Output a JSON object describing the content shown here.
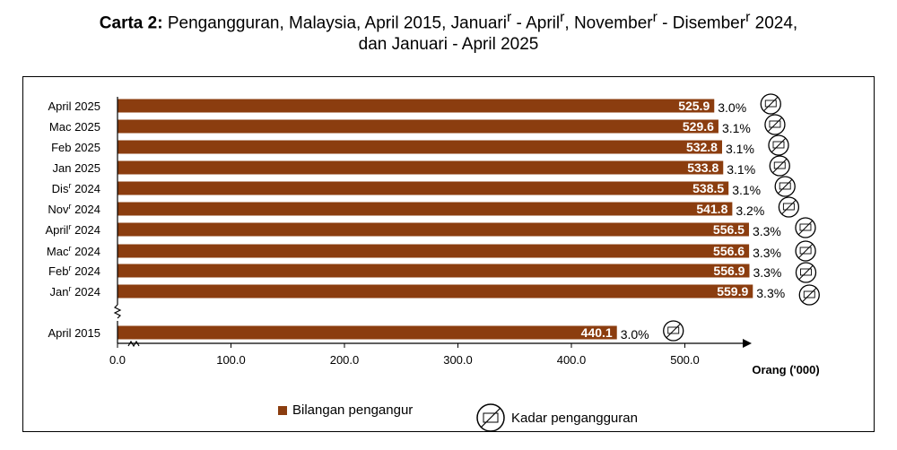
{
  "title": {
    "prefix": "Carta 2:",
    "line1": "Pengangguran, Malaysia, April 2015, Januari",
    "sup_r": "r",
    "dash": " - ",
    "april": "April",
    "comma": ", ",
    "november": "November",
    "disember": "Disember",
    "year2024": " 2024,",
    "line2": "dan Januari - April 2025"
  },
  "colors": {
    "bar": "#8B3D0F",
    "bar_label": "#ffffff",
    "axis": "#000000"
  },
  "chart_data": {
    "type": "bar",
    "orientation": "horizontal",
    "categories": [
      {
        "label": "April 2025",
        "sup": ""
      },
      {
        "label": "Mac 2025",
        "sup": ""
      },
      {
        "label": "Feb 2025",
        "sup": ""
      },
      {
        "label": "Jan 2025",
        "sup": ""
      },
      {
        "label": "Dis",
        "sup": "r",
        "suffix": " 2024"
      },
      {
        "label": "Nov",
        "sup": "r",
        "suffix": " 2024"
      },
      {
        "label": "April",
        "sup": "r",
        "suffix": " 2024"
      },
      {
        "label": "Mac",
        "sup": "r",
        "suffix": " 2024"
      },
      {
        "label": "Feb",
        "sup": "r",
        "suffix": " 2024"
      },
      {
        "label": "Jan",
        "sup": "r",
        "suffix": " 2024"
      },
      {
        "label": "April 2015",
        "sup": ""
      }
    ],
    "series": [
      {
        "name": "Bilangan pengangur",
        "values": [
          525.9,
          529.6,
          532.8,
          533.8,
          538.5,
          541.8,
          556.5,
          556.6,
          556.9,
          559.9,
          440.1
        ]
      },
      {
        "name": "Kadar pengangguran",
        "values": [
          "3.0%",
          "3.1%",
          "3.1%",
          "3.1%",
          "3.1%",
          "3.2%",
          "3.3%",
          "3.3%",
          "3.3%",
          "3.3%",
          "3.0%"
        ]
      }
    ],
    "x_ticks": [
      "0.0",
      "100.0",
      "200.0",
      "300.0",
      "400.0",
      "500.0"
    ],
    "xlim": [
      0,
      550
    ],
    "xlabel": "Orang ('000)",
    "axis_break": true,
    "legend_position": "bottom"
  },
  "legend": {
    "bars": "Bilangan pengangur",
    "rate": "Kadar pengangguran"
  }
}
